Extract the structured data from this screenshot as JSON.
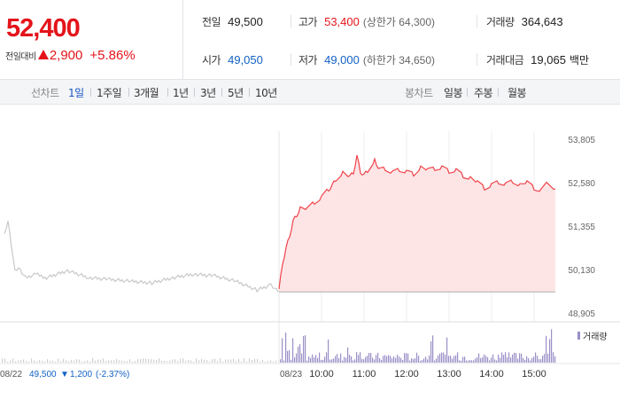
{
  "quote": {
    "price": "52,400",
    "change_label": "전일대비",
    "change_amount": "2,900",
    "change_rate": "+5.86%"
  },
  "stats": {
    "prev_close": {
      "label": "전일",
      "value": "49,500"
    },
    "high": {
      "label": "고가",
      "value": "53,400",
      "sub": "(상한가 64,300)"
    },
    "volume": {
      "label": "거래량",
      "value": "364,643"
    },
    "open": {
      "label": "시가",
      "value": "49,050"
    },
    "low": {
      "label": "저가",
      "value": "49,000",
      "sub": "(하한가 34,650)"
    },
    "trade_value": {
      "label": "거래대금",
      "value": "19,065",
      "unit": "백만"
    }
  },
  "line_chart_tabs": {
    "label": "선차트",
    "items": [
      "1일",
      "1주일",
      "3개월",
      "1년",
      "3년",
      "5년",
      "10년"
    ],
    "active": "1일"
  },
  "candle_chart_tabs": {
    "label": "봉차트",
    "items": [
      "일봉",
      "주봉",
      "월봉"
    ]
  },
  "colors": {
    "up": "#e4141b",
    "down": "#1261c4",
    "today_line": "#f0434a",
    "today_fill": "#fde5e6",
    "prev_line": "#c8c8c8",
    "volume_today": "#9b8fc7",
    "volume_prev": "#cfcfcf"
  },
  "chart_data": {
    "type": "line",
    "title": "",
    "y_ticks": [
      "53,805",
      "52,580",
      "51,355",
      "50,130",
      "48,905"
    ],
    "y_tick_values": [
      53805,
      52580,
      51355,
      50130,
      48905
    ],
    "ylim": [
      48905,
      53805
    ],
    "x_ticks": [
      "10:00",
      "11:00",
      "12:00",
      "13:00",
      "14:00",
      "15:00"
    ],
    "grid": "vertical",
    "previous_session": {
      "date": "08/22",
      "close": "49,500",
      "change": "1,200",
      "rate": "(-2.37%)",
      "times": [
        "09:00",
        "09:05",
        "09:10",
        "09:15",
        "09:20",
        "09:30",
        "09:45",
        "10:00",
        "10:30",
        "11:00",
        "11:30",
        "12:00",
        "12:30",
        "13:00",
        "13:30",
        "14:00",
        "14:30",
        "15:00",
        "15:20",
        "15:30"
      ],
      "values": [
        51100,
        51500,
        50800,
        50100,
        50200,
        49900,
        50000,
        49900,
        50100,
        49900,
        49850,
        49800,
        49750,
        49900,
        50000,
        49950,
        49800,
        49550,
        49700,
        49500
      ]
    },
    "today": {
      "date": "08/23",
      "base": 49500,
      "times": [
        "09:00",
        "09:05",
        "09:10",
        "09:15",
        "09:20",
        "09:25",
        "09:30",
        "09:40",
        "09:50",
        "10:00",
        "10:10",
        "10:15",
        "10:20",
        "10:30",
        "10:40",
        "10:45",
        "10:50",
        "10:55",
        "11:00",
        "11:05",
        "11:15",
        "11:20",
        "11:30",
        "11:40",
        "11:50",
        "12:00",
        "12:10",
        "12:20",
        "12:30",
        "12:40",
        "12:50",
        "13:00",
        "13:10",
        "13:20",
        "13:30",
        "13:40",
        "13:50",
        "14:00",
        "14:10",
        "14:20",
        "14:30",
        "14:40",
        "14:50",
        "15:00",
        "15:10",
        "15:20",
        "15:30"
      ],
      "values": [
        49500,
        50300,
        50700,
        51100,
        51500,
        51700,
        51900,
        51800,
        52000,
        52150,
        52400,
        52500,
        52700,
        52900,
        52700,
        52850,
        53300,
        52900,
        52800,
        52950,
        53250,
        52900,
        52950,
        52850,
        52950,
        52900,
        52850,
        53050,
        52900,
        52950,
        53000,
        52900,
        52950,
        52800,
        52750,
        52550,
        52400,
        52500,
        52600,
        52550,
        52650,
        52550,
        52550,
        52400,
        52350,
        52600,
        52400
      ]
    },
    "volume_label": "거래량"
  }
}
